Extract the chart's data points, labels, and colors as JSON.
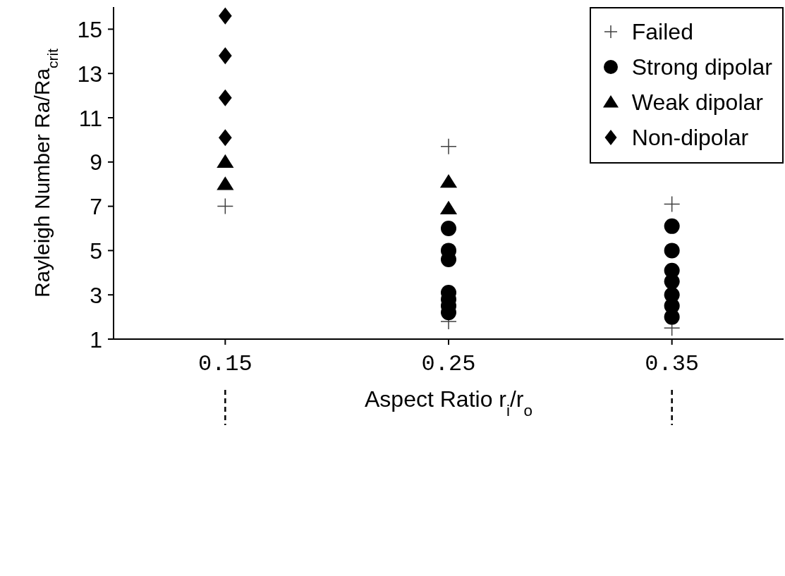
{
  "chart_data": {
    "type": "scatter",
    "xlabel": "Aspect Ratio r$_{i}$/r$_{o}$",
    "ylabel": "Rayleigh Number Ra/Ra$_{crit}$",
    "xlim": [
      0.1,
      0.4
    ],
    "xticks": [
      0.15,
      0.25,
      0.35
    ],
    "ylim": [
      1,
      16
    ],
    "yticks": [
      1,
      3,
      5,
      7,
      9,
      11,
      13,
      15
    ],
    "legend": "top right",
    "series": [
      {
        "name": "Failed",
        "color": "#404040",
        "marker": "cross",
        "x": [
          0.15,
          0.25,
          0.25,
          0.35,
          0.35
        ],
        "values": [
          7.0,
          9.7,
          1.8,
          7.1,
          1.5
        ]
      },
      {
        "name": "Strong dipolar",
        "color": "#000000",
        "marker": "circle",
        "x": [
          0.25,
          0.25,
          0.25,
          0.25,
          0.25,
          0.25,
          0.25,
          0.35,
          0.35,
          0.35,
          0.35,
          0.35,
          0.35,
          0.35
        ],
        "values": [
          6.0,
          5.0,
          4.6,
          3.1,
          2.8,
          2.5,
          2.2,
          6.1,
          5.0,
          4.1,
          3.6,
          3.0,
          2.5,
          2.0
        ]
      },
      {
        "name": "Weak dipolar",
        "color": "#000000",
        "marker": "triangle",
        "x": [
          0.15,
          0.15,
          0.25,
          0.25
        ],
        "values": [
          9.0,
          8.0,
          8.1,
          6.9
        ]
      },
      {
        "name": "Non-dipolar",
        "color": "#000000",
        "marker": "diamond",
        "x": [
          0.15,
          0.15,
          0.15,
          0.15
        ],
        "values": [
          15.6,
          13.8,
          11.9,
          10.1
        ]
      }
    ]
  }
}
